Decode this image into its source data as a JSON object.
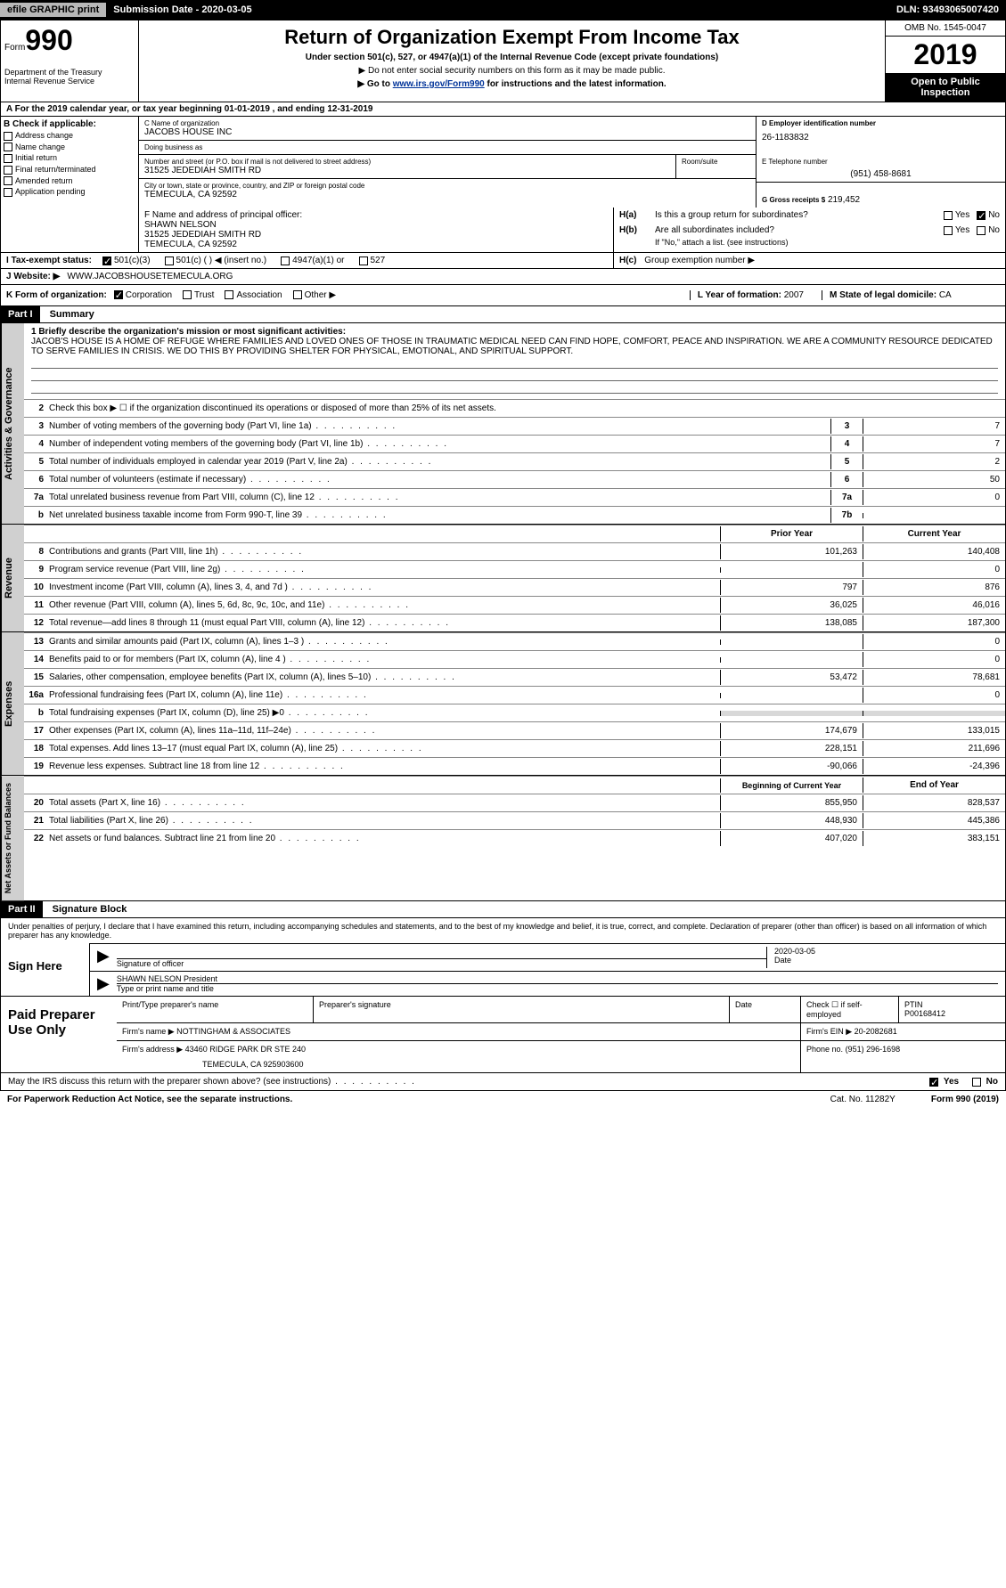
{
  "topbar": {
    "efile": "efile GRAPHIC print",
    "submission": "Submission Date - 2020-03-05",
    "dln": "DLN: 93493065007420"
  },
  "header": {
    "form_prefix": "Form",
    "form_number": "990",
    "dept": "Department of the Treasury\nInternal Revenue Service",
    "title": "Return of Organization Exempt From Income Tax",
    "sub1": "Under section 501(c), 527, or 4947(a)(1) of the Internal Revenue Code (except private foundations)",
    "sub2": "▶ Do not enter social security numbers on this form as it may be made public.",
    "sub3_pre": "▶ Go to ",
    "sub3_link": "www.irs.gov/Form990",
    "sub3_post": " for instructions and the latest information.",
    "omb": "OMB No. 1545-0047",
    "year": "2019",
    "open": "Open to Public Inspection"
  },
  "period": "A  For the 2019 calendar year, or tax year beginning 01-01-2019      , and ending 12-31-2019",
  "section_b": {
    "hdr": "B Check if applicable:",
    "items": [
      "Address change",
      "Name change",
      "Initial return",
      "Final return/terminated",
      "Amended return",
      "Application pending"
    ]
  },
  "section_c": {
    "name_lbl": "C Name of organization",
    "name": "JACOBS HOUSE INC",
    "dba_lbl": "Doing business as",
    "dba": "",
    "addr_lbl": "Number and street (or P.O. box if mail is not delivered to street address)",
    "addr": "31525 JEDEDIAH SMITH RD",
    "room_lbl": "Room/suite",
    "city_lbl": "City or town, state or province, country, and ZIP or foreign postal code",
    "city": "TEMECULA, CA  92592"
  },
  "section_d": {
    "lbl": "D Employer identification number",
    "val": "26-1183832"
  },
  "section_e": {
    "lbl": "E Telephone number",
    "val": "(951) 458-8681"
  },
  "section_g": {
    "lbl": "G Gross receipts $",
    "val": "219,452"
  },
  "section_f": {
    "lbl": "F  Name and address of principal officer:",
    "name": "SHAWN NELSON",
    "addr1": "31525 JEDEDIAH SMITH RD",
    "addr2": "TEMECULA, CA  92592"
  },
  "section_h": {
    "ha_lbl": "H(a)",
    "ha_txt": "Is this a group return for subordinates?",
    "hb_lbl": "H(b)",
    "hb_txt": "Are all subordinates included?",
    "hb_note": "If \"No,\" attach a list. (see instructions)",
    "hc_lbl": "H(c)",
    "hc_txt": "Group exemption number ▶",
    "yes": "Yes",
    "no": "No"
  },
  "section_i": {
    "lbl": "I    Tax-exempt status:",
    "opts": [
      "501(c)(3)",
      "501(c) (  ) ◀ (insert no.)",
      "4947(a)(1) or",
      "527"
    ]
  },
  "section_j": {
    "lbl": "J   Website: ▶",
    "val": "WWW.JACOBSHOUSETEMECULA.ORG"
  },
  "section_k": {
    "lbl": "K Form of organization:",
    "opts": [
      "Corporation",
      "Trust",
      "Association",
      "Other ▶"
    ]
  },
  "section_l": {
    "lbl": "L Year of formation:",
    "val": "2007"
  },
  "section_m": {
    "lbl": "M State of legal domicile:",
    "val": "CA"
  },
  "part1": {
    "hdr": "Part I",
    "title": "Summary",
    "mission_lbl": "1  Briefly describe the organization's mission or most significant activities:",
    "mission": "JACOB'S HOUSE IS A HOME OF REFUGE WHERE FAMILIES AND LOVED ONES OF THOSE IN TRAUMATIC MEDICAL NEED CAN FIND HOPE, COMFORT, PEACE AND INSPIRATION. WE ARE A COMMUNITY RESOURCE DEDICATED TO SERVE FAMILIES IN CRISIS. WE DO THIS BY PROVIDING SHELTER FOR PHYSICAL, EMOTIONAL, AND SPIRITUAL SUPPORT.",
    "line2": "Check this box ▶ ☐ if the organization discontinued its operations or disposed of more than 25% of its net assets."
  },
  "vert_labels": {
    "act_gov": "Activities & Governance",
    "revenue": "Revenue",
    "expenses": "Expenses",
    "net": "Net Assets or Fund Balances"
  },
  "lines_ag": [
    {
      "n": "3",
      "t": "Number of voting members of the governing body (Part VI, line 1a)",
      "box": "3",
      "v": "7"
    },
    {
      "n": "4",
      "t": "Number of independent voting members of the governing body (Part VI, line 1b)",
      "box": "4",
      "v": "7"
    },
    {
      "n": "5",
      "t": "Total number of individuals employed in calendar year 2019 (Part V, line 2a)",
      "box": "5",
      "v": "2"
    },
    {
      "n": "6",
      "t": "Total number of volunteers (estimate if necessary)",
      "box": "6",
      "v": "50"
    },
    {
      "n": "7a",
      "t": "Total unrelated business revenue from Part VIII, column (C), line 12",
      "box": "7a",
      "v": "0"
    },
    {
      "n": "b",
      "t": "Net unrelated business taxable income from Form 990-T, line 39",
      "box": "7b",
      "v": ""
    }
  ],
  "col_hdrs": {
    "prior": "Prior Year",
    "current": "Current Year"
  },
  "lines_rev": [
    {
      "n": "8",
      "t": "Contributions and grants (Part VIII, line 1h)",
      "p": "101,263",
      "c": "140,408"
    },
    {
      "n": "9",
      "t": "Program service revenue (Part VIII, line 2g)",
      "p": "",
      "c": "0"
    },
    {
      "n": "10",
      "t": "Investment income (Part VIII, column (A), lines 3, 4, and 7d )",
      "p": "797",
      "c": "876"
    },
    {
      "n": "11",
      "t": "Other revenue (Part VIII, column (A), lines 5, 6d, 8c, 9c, 10c, and 11e)",
      "p": "36,025",
      "c": "46,016"
    },
    {
      "n": "12",
      "t": "Total revenue—add lines 8 through 11 (must equal Part VIII, column (A), line 12)",
      "p": "138,085",
      "c": "187,300"
    }
  ],
  "lines_exp": [
    {
      "n": "13",
      "t": "Grants and similar amounts paid (Part IX, column (A), lines 1–3 )",
      "p": "",
      "c": "0"
    },
    {
      "n": "14",
      "t": "Benefits paid to or for members (Part IX, column (A), line 4 )",
      "p": "",
      "c": "0"
    },
    {
      "n": "15",
      "t": "Salaries, other compensation, employee benefits (Part IX, column (A), lines 5–10)",
      "p": "53,472",
      "c": "78,681"
    },
    {
      "n": "16a",
      "t": "Professional fundraising fees (Part IX, column (A), line 11e)",
      "p": "",
      "c": "0"
    },
    {
      "n": "b",
      "t": "Total fundraising expenses (Part IX, column (D), line 25) ▶0",
      "p": "",
      "c": "",
      "shade": true
    },
    {
      "n": "17",
      "t": "Other expenses (Part IX, column (A), lines 11a–11d, 11f–24e)",
      "p": "174,679",
      "c": "133,015"
    },
    {
      "n": "18",
      "t": "Total expenses. Add lines 13–17 (must equal Part IX, column (A), line 25)",
      "p": "228,151",
      "c": "211,696"
    },
    {
      "n": "19",
      "t": "Revenue less expenses. Subtract line 18 from line 12",
      "p": "-90,066",
      "c": "-24,396"
    }
  ],
  "col_hdrs2": {
    "beg": "Beginning of Current Year",
    "end": "End of Year"
  },
  "lines_net": [
    {
      "n": "20",
      "t": "Total assets (Part X, line 16)",
      "p": "855,950",
      "c": "828,537"
    },
    {
      "n": "21",
      "t": "Total liabilities (Part X, line 26)",
      "p": "448,930",
      "c": "445,386"
    },
    {
      "n": "22",
      "t": "Net assets or fund balances. Subtract line 21 from line 20",
      "p": "407,020",
      "c": "383,151"
    }
  ],
  "part2": {
    "hdr": "Part II",
    "title": "Signature Block",
    "decl": "Under penalties of perjury, I declare that I have examined this return, including accompanying schedules and statements, and to the best of my knowledge and belief, it is true, correct, and complete. Declaration of preparer (other than officer) is based on all information of which preparer has any knowledge."
  },
  "sign": {
    "here": "Sign Here",
    "sig_lbl": "Signature of officer",
    "date_lbl": "Date",
    "date": "2020-03-05",
    "name": "SHAWN NELSON President",
    "name_lbl": "Type or print name and title"
  },
  "paid": {
    "title": "Paid Preparer Use Only",
    "print_lbl": "Print/Type preparer's name",
    "sig_lbl": "Preparer's signature",
    "date_lbl": "Date",
    "check_lbl": "Check ☐ if self-employed",
    "ptin_lbl": "PTIN",
    "ptin": "P00168412",
    "firm_name_lbl": "Firm's name    ▶",
    "firm_name": "NOTTINGHAM & ASSOCIATES",
    "firm_ein_lbl": "Firm's EIN ▶",
    "firm_ein": "20-2082681",
    "firm_addr_lbl": "Firm's address ▶",
    "firm_addr": "43460 RIDGE PARK DR STE 240",
    "firm_city": "TEMECULA, CA  925903600",
    "phone_lbl": "Phone no.",
    "phone": "(951) 296-1698"
  },
  "footer": {
    "irs_q": "May the IRS discuss this return with the preparer shown above? (see instructions)",
    "yes": "Yes",
    "no": "No",
    "pra": "For Paperwork Reduction Act Notice, see the separate instructions.",
    "cat": "Cat. No. 11282Y",
    "form": "Form 990 (2019)"
  },
  "colors": {
    "black": "#000000",
    "grey_bg": "#d0d0d0",
    "light_grey": "#d8d8d8",
    "link": "#003399"
  }
}
